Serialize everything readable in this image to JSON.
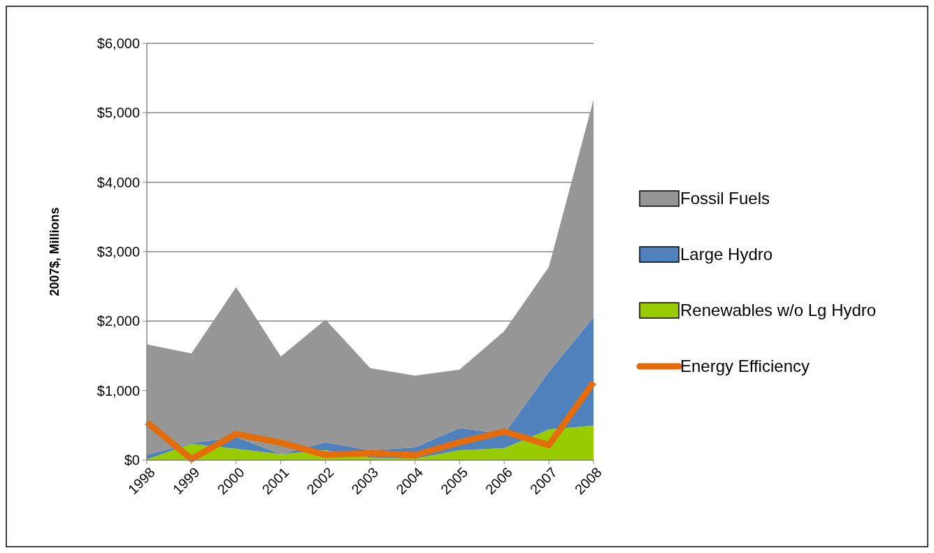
{
  "chart_data": {
    "type": "area",
    "stacked": true,
    "ylabel": "2007$, Millions",
    "categories": [
      "1998",
      "1999",
      "2000",
      "2001",
      "2002",
      "2003",
      "2004",
      "2005",
      "2006",
      "2007",
      "2008"
    ],
    "series": [
      {
        "name": "Renewables w/o Lg Hydro",
        "color": "#99cc00",
        "values": [
          10,
          235,
          160,
          85,
          140,
          35,
          20,
          140,
          170,
          440,
          495
        ]
      },
      {
        "name": "Large Hydro",
        "color": "#4f81bd",
        "values": [
          65,
          10,
          170,
          0,
          115,
          105,
          160,
          320,
          205,
          830,
          1560
        ]
      },
      {
        "name": "Fossil Fuels",
        "color": "#969696",
        "values": [
          1590,
          1290,
          2160,
          1405,
          1765,
          1185,
          1035,
          840,
          1480,
          1510,
          3135
        ]
      },
      {
        "name": "Energy Efficiency",
        "type": "line",
        "color": "#e46c0a",
        "values": [
          545,
          15,
          375,
          250,
          75,
          100,
          70,
          255,
          410,
          215,
          1120
        ]
      }
    ],
    "ylim": [
      0,
      6000
    ],
    "yticks": [
      {
        "value": 0,
        "label": "$0"
      },
      {
        "value": 1000,
        "label": "$1,000"
      },
      {
        "value": 2000,
        "label": "$2,000"
      },
      {
        "value": 3000,
        "label": "$3,000"
      },
      {
        "value": 4000,
        "label": "$4,000"
      },
      {
        "value": 5000,
        "label": "$5,000"
      },
      {
        "value": 6000,
        "label": "$6,000"
      }
    ],
    "grid": "y",
    "legend": "right"
  }
}
